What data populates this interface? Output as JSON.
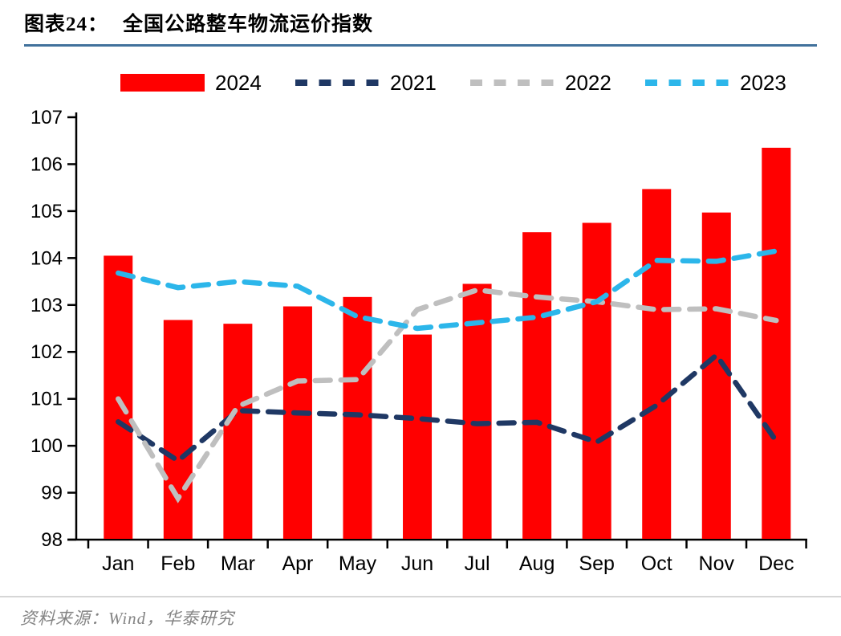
{
  "header": {
    "title_prefix": "图表24：",
    "title": "全国公路整车物流运价指数"
  },
  "source": {
    "text": "资料来源：Wind，华泰研究"
  },
  "colors": {
    "bar_2024": "#FF0000",
    "line_2021": "#1F3864",
    "line_2022": "#BFBFBF",
    "line_2023": "#2CB6EA",
    "axis": "#000000",
    "title_rule": "#41719C",
    "source_rule": "#D6D6D6",
    "source_text": "#848484"
  },
  "chart_data": {
    "type": "bar",
    "title": "全国公路整车物流运价指数",
    "xlabel": "",
    "ylabel": "",
    "ylim": [
      98,
      107
    ],
    "yticks": [
      98,
      99,
      100,
      101,
      102,
      103,
      104,
      105,
      106,
      107
    ],
    "grid": false,
    "legend_position": "top",
    "categories": [
      "Jan",
      "Feb",
      "Mar",
      "Apr",
      "May",
      "Jun",
      "Jul",
      "Aug",
      "Sep",
      "Oct",
      "Nov",
      "Dec"
    ],
    "series": [
      {
        "name": "2024",
        "type": "bar",
        "color_key": "bar_2024",
        "values": [
          104.05,
          102.68,
          102.6,
          102.97,
          103.17,
          102.37,
          103.45,
          104.55,
          104.75,
          105.47,
          104.97,
          106.35
        ]
      },
      {
        "name": "2021",
        "type": "line",
        "dashed": true,
        "color_key": "line_2021",
        "values": [
          100.51,
          99.68,
          100.75,
          100.7,
          100.66,
          100.58,
          100.47,
          100.5,
          100.08,
          100.86,
          101.93,
          100.1
        ]
      },
      {
        "name": "2022",
        "type": "line",
        "dashed": true,
        "color_key": "line_2022",
        "values": [
          101.0,
          98.88,
          100.84,
          101.38,
          101.41,
          102.9,
          103.32,
          103.17,
          103.07,
          102.9,
          102.92,
          102.67
        ]
      },
      {
        "name": "2023",
        "type": "line",
        "dashed": true,
        "color_key": "line_2023",
        "values": [
          103.68,
          103.37,
          103.5,
          103.4,
          102.75,
          102.5,
          102.62,
          102.74,
          103.07,
          103.95,
          103.93,
          104.15
        ]
      }
    ]
  }
}
